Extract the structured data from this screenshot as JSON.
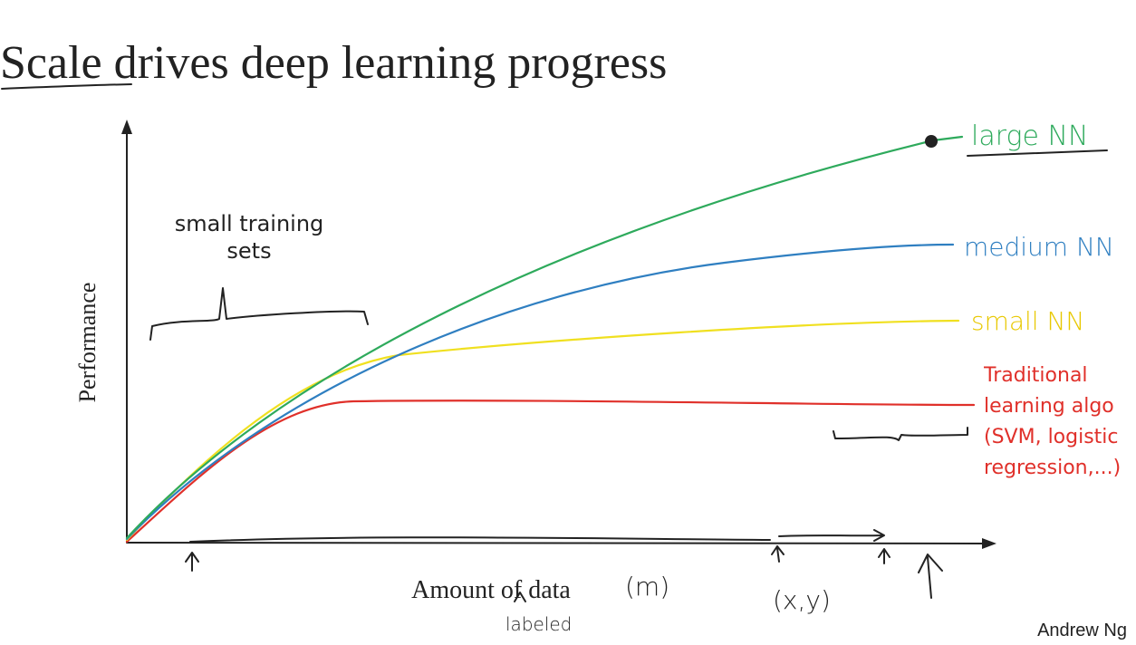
{
  "title": "Scale drives deep learning progress",
  "y_axis_label": "Performance",
  "x_axis_label": "Amount of data",
  "x_axis_note": "(m)",
  "x_axis_subnote": "labeled",
  "curves": [
    {
      "label": "large NN"
    },
    {
      "label": "medium NN"
    },
    {
      "label": "small NN"
    },
    {
      "label": "Traditional learning algo (SVM, logistic regression,...)"
    }
  ],
  "annotations": {
    "small_sets": "small training sets",
    "pair": "(x,y)"
  },
  "author": "Andrew Ng"
}
